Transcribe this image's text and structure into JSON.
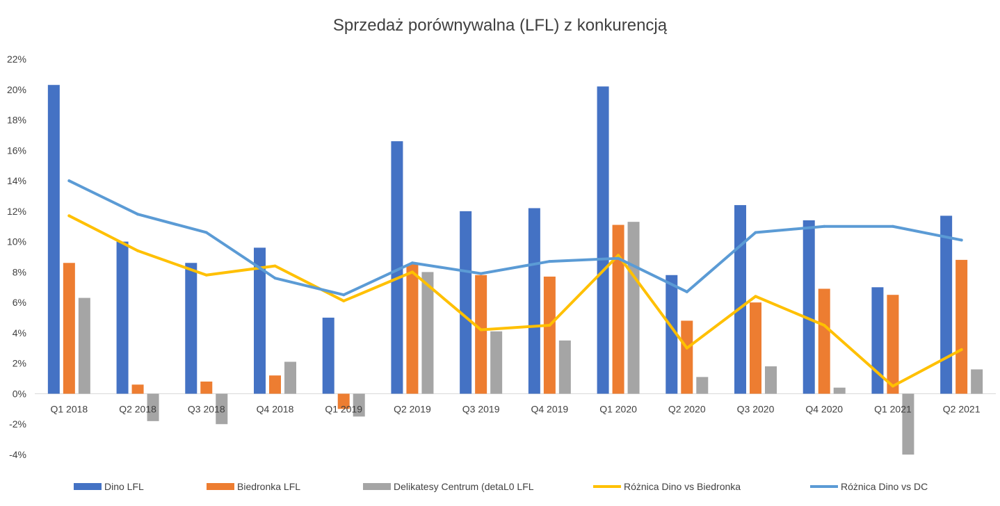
{
  "chart_data": {
    "type": "bar",
    "title": "Sprzedaż porównywalna (LFL) z konkurencją",
    "xlabel": "",
    "ylabel": "",
    "ylim": [
      -4,
      22
    ],
    "ytick_step": 2,
    "ytick_suffix": "%",
    "grid": false,
    "legend_position": "bottom",
    "categories": [
      "Q1 2018",
      "Q2 2018",
      "Q3 2018",
      "Q4 2018",
      "Q1 2019",
      "Q2 2019",
      "Q3 2019",
      "Q4 2019",
      "Q1 2020",
      "Q2 2020",
      "Q3 2020",
      "Q4 2020",
      "Q1 2021",
      "Q2 2021"
    ],
    "series": [
      {
        "name": "Dino LFL",
        "type": "bar",
        "color": "#4472C4",
        "values": [
          20.3,
          10.0,
          8.6,
          9.6,
          5.0,
          16.6,
          12.0,
          12.2,
          20.2,
          7.8,
          12.4,
          11.4,
          7.0,
          11.7
        ]
      },
      {
        "name": "Biedronka LFL",
        "type": "bar",
        "color": "#ED7D31",
        "values": [
          8.6,
          0.6,
          0.8,
          1.2,
          -1.0,
          8.5,
          7.8,
          7.7,
          11.1,
          4.8,
          6.0,
          6.9,
          6.5,
          8.8
        ]
      },
      {
        "name": "Delikatesy Centrum (detaL0 LFL",
        "type": "bar",
        "color": "#A5A5A5",
        "values": [
          6.3,
          -1.8,
          -2.0,
          2.1,
          -1.5,
          8.0,
          4.1,
          3.5,
          11.3,
          1.1,
          1.8,
          0.4,
          -4.0,
          1.6
        ]
      },
      {
        "name": "Różnica Dino vs Biedronka",
        "type": "line",
        "color": "#FFC000",
        "values": [
          11.7,
          9.4,
          7.8,
          8.4,
          6.1,
          8.0,
          4.2,
          4.5,
          9.1,
          3.0,
          6.4,
          4.5,
          0.5,
          2.9
        ]
      },
      {
        "name": "Różnica Dino vs DC",
        "type": "line",
        "color": "#5B9BD5",
        "values": [
          14.0,
          11.8,
          10.6,
          7.6,
          6.5,
          8.6,
          7.9,
          8.7,
          8.9,
          6.7,
          10.6,
          11.0,
          11.0,
          10.1
        ]
      }
    ]
  }
}
